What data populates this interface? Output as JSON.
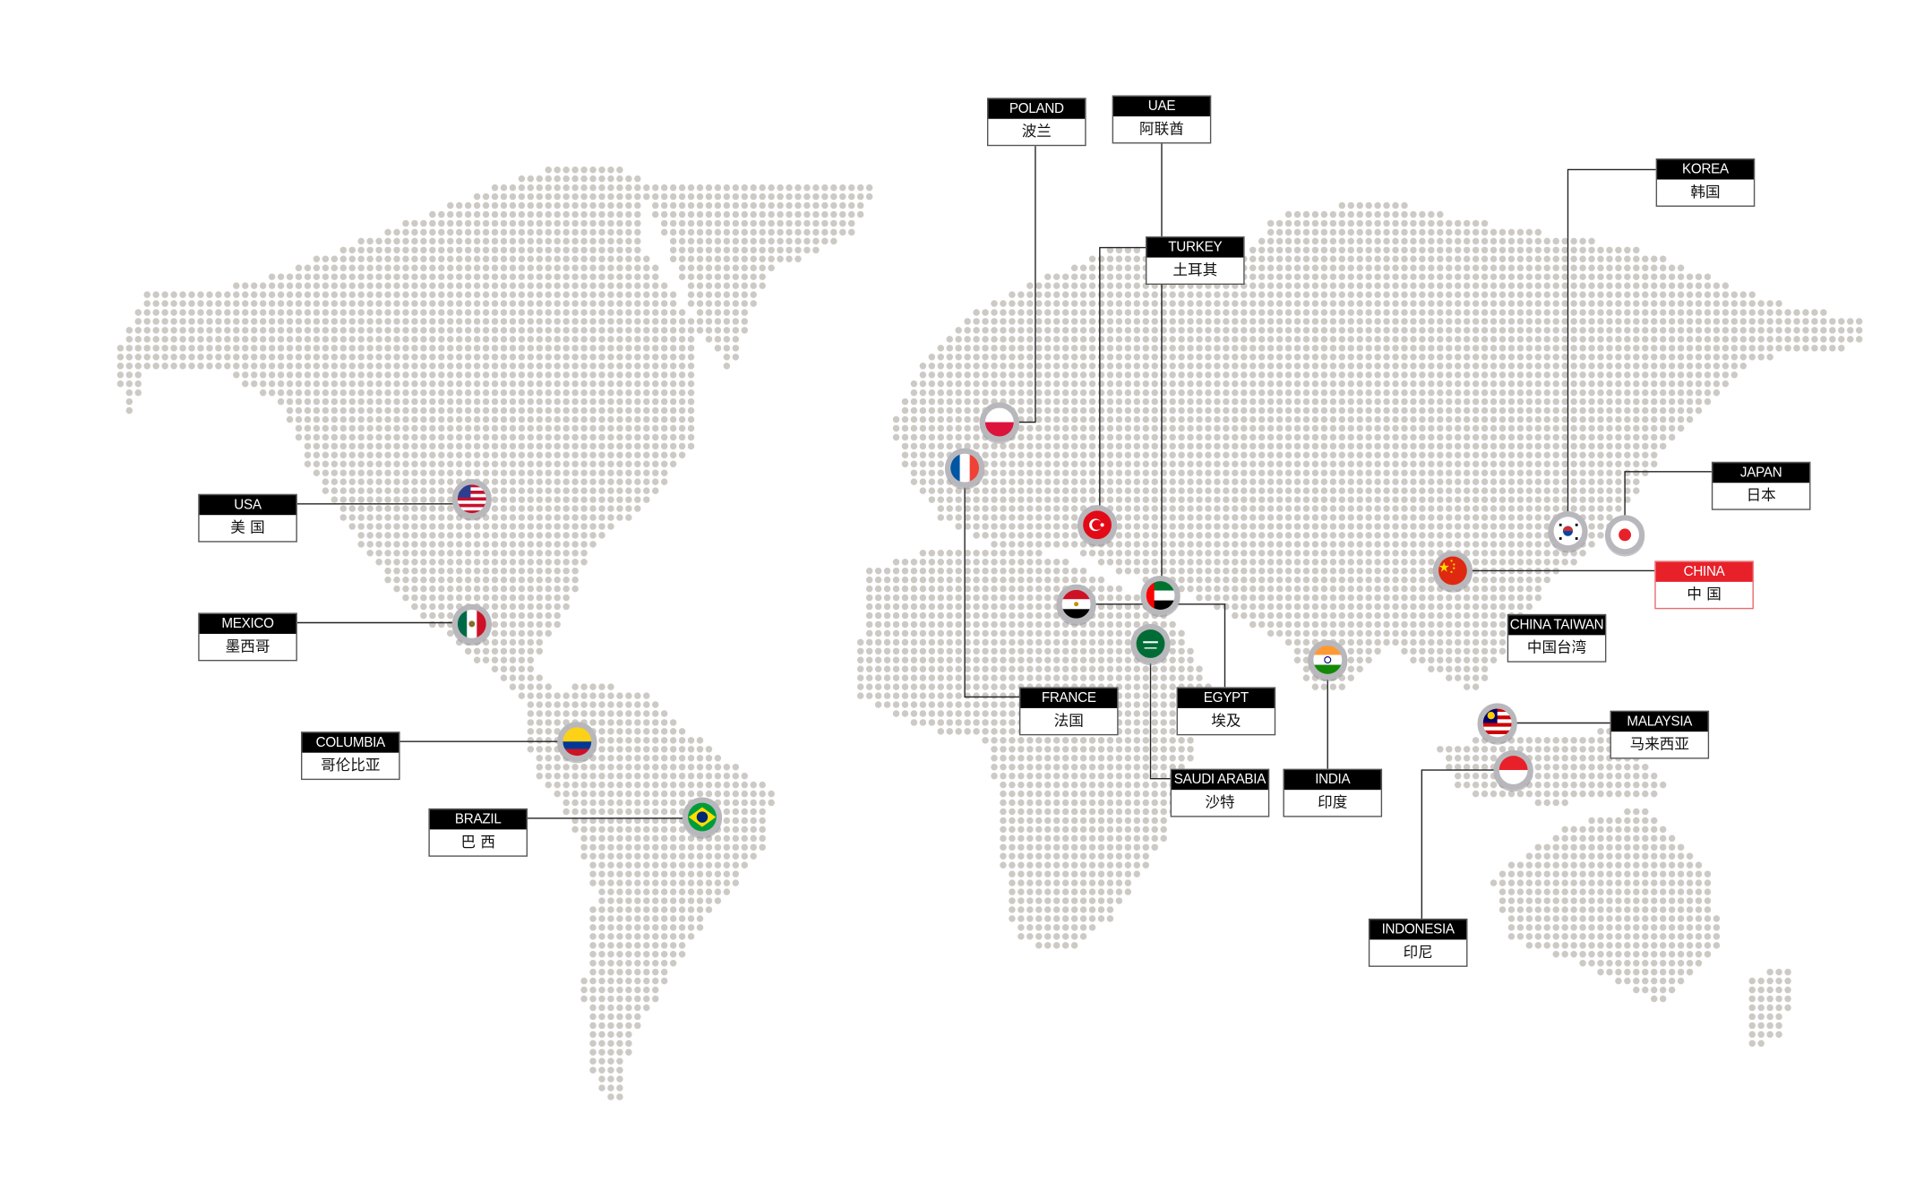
{
  "map": {
    "dot_color": "#cdc9c4",
    "line_color": "#222222",
    "highlight_color": "#e8202a",
    "locations": [
      {
        "en": "USA",
        "zh": "美 国",
        "flag": "flag-usa-icon",
        "highlight": false
      },
      {
        "en": "MEXICO",
        "zh": "墨西哥",
        "flag": "flag-mexico-icon",
        "highlight": false
      },
      {
        "en": "COLUMBIA",
        "zh": "哥伦比亚",
        "flag": "flag-colombia-icon",
        "highlight": false
      },
      {
        "en": "BRAZIL",
        "zh": "巴 西",
        "flag": "flag-brazil-icon",
        "highlight": false
      },
      {
        "en": "POLAND",
        "zh": "波兰",
        "flag": "flag-poland-icon",
        "highlight": false
      },
      {
        "en": "UAE",
        "zh": "阿联酋",
        "flag": "flag-uae-icon",
        "highlight": false
      },
      {
        "en": "TURKEY",
        "zh": "土耳其",
        "flag": "flag-turkey-icon",
        "highlight": false
      },
      {
        "en": "FRANCE",
        "zh": "法国",
        "flag": "flag-france-icon",
        "highlight": false
      },
      {
        "en": "EGYPT",
        "zh": "埃及",
        "flag": "flag-egypt-icon",
        "highlight": false
      },
      {
        "en": "SAUDI ARABIA",
        "zh": "沙特",
        "flag": "flag-saudi-arabia-icon",
        "highlight": false
      },
      {
        "en": "INDIA",
        "zh": "印度",
        "flag": "flag-india-icon",
        "highlight": false
      },
      {
        "en": "KOREA",
        "zh": "韩国",
        "flag": "flag-korea-icon",
        "highlight": false
      },
      {
        "en": "JAPAN",
        "zh": "日本",
        "flag": "flag-japan-icon",
        "highlight": false
      },
      {
        "en": "CHINA",
        "zh": "中 国",
        "flag": "flag-china-icon",
        "highlight": true
      },
      {
        "en": "CHINA TAIWAN",
        "zh": "中国台湾",
        "flag": "",
        "highlight": false
      },
      {
        "en": "MALAYSIA",
        "zh": "马来西亚",
        "flag": "flag-malaysia-icon",
        "highlight": false
      },
      {
        "en": "INDONESIA",
        "zh": "印尼",
        "flag": "flag-indonesia-icon",
        "highlight": false
      }
    ]
  }
}
